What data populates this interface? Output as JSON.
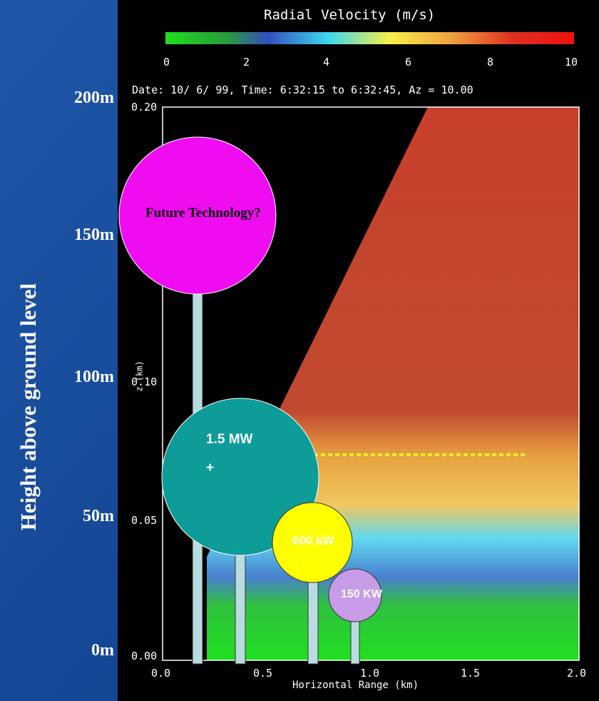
{
  "slide": {
    "y_axis_title": "Height above ground level",
    "height_labels": [
      "200m",
      "150m",
      "100m",
      "50m",
      "0m"
    ]
  },
  "image": {
    "title": "Radial Velocity (m/s)",
    "colorbar_ticks": [
      "0",
      "2",
      "4",
      "6",
      "8",
      "10"
    ],
    "subtitle": "Date: 10/ 6/ 99, Time: 6:32:15 to 6:32:45, Az = 10.00",
    "y_ticks": [
      "0.20",
      "0.10",
      "0.05",
      "0.00"
    ],
    "x_ticks": [
      "0.0",
      "0.5",
      "1.0",
      "1.5",
      "2.0"
    ],
    "x_label": "Horizontal Range (km)",
    "y_label": "z (km)"
  },
  "turbines": [
    {
      "label": "Future Technology?"
    },
    {
      "label": "1.5 MW +"
    },
    {
      "label": "600 kW"
    },
    {
      "label": "150 KW"
    }
  ]
}
